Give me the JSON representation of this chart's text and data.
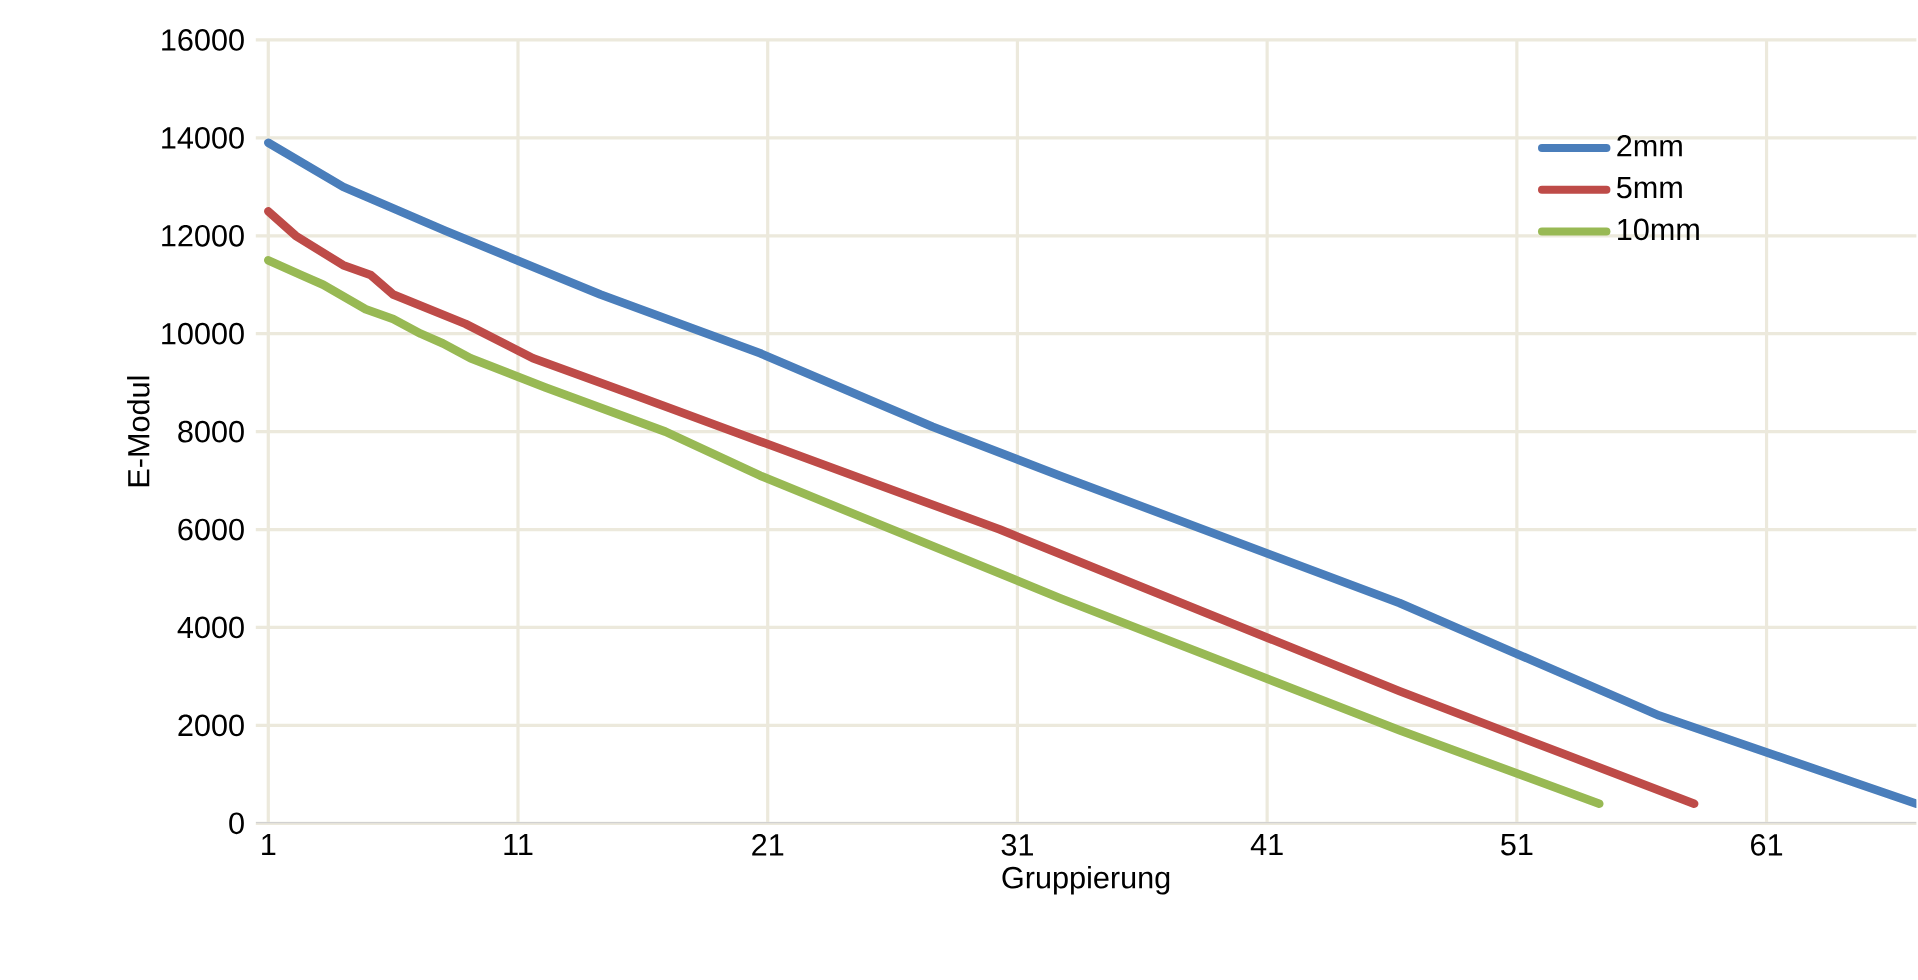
{
  "chart_data": {
    "type": "line",
    "xlabel": "Gruppierung",
    "ylabel": "E-Modul",
    "xlim": [
      0.5,
      67
    ],
    "xticks": [
      1,
      11,
      21,
      31,
      41,
      51,
      61
    ],
    "ylim": [
      0,
      16000
    ],
    "yticks": [
      0,
      2000,
      4000,
      6000,
      8000,
      10000,
      12000,
      14000,
      16000
    ],
    "grid": true,
    "legend": "top right",
    "line_style": "solid",
    "series": [
      {
        "name": "2mm",
        "color": "#4a7ebb",
        "x": [
          1,
          4,
          8.1,
          14.3,
          20.7,
          27.6,
          32.7,
          46.3,
          56.7,
          67
        ],
        "values": [
          13900,
          13000,
          12100,
          10800,
          9600,
          8100,
          7100,
          4500,
          2200,
          400
        ]
      },
      {
        "name": "5mm",
        "color": "#be4b48",
        "x": [
          1,
          2.1,
          4,
          5.1,
          6,
          8.9,
          11.6,
          15.9,
          20.7,
          30.3,
          46.3,
          58.1
        ],
        "values": [
          12500,
          12000,
          11400,
          11200,
          10800,
          10200,
          9500,
          8700,
          7800,
          6000,
          2700,
          400
        ]
      },
      {
        "name": "10mm",
        "color": "#98b954",
        "x": [
          1,
          2.3,
          3.2,
          4.9,
          6,
          7.1,
          8,
          9.1,
          12.1,
          16.9,
          20.7,
          32.7,
          46.3,
          54.3
        ],
        "values": [
          11500,
          11200,
          11000,
          10500,
          10300,
          10000,
          9800,
          9500,
          8900,
          8000,
          7100,
          4600,
          1900,
          400
        ]
      }
    ]
  }
}
